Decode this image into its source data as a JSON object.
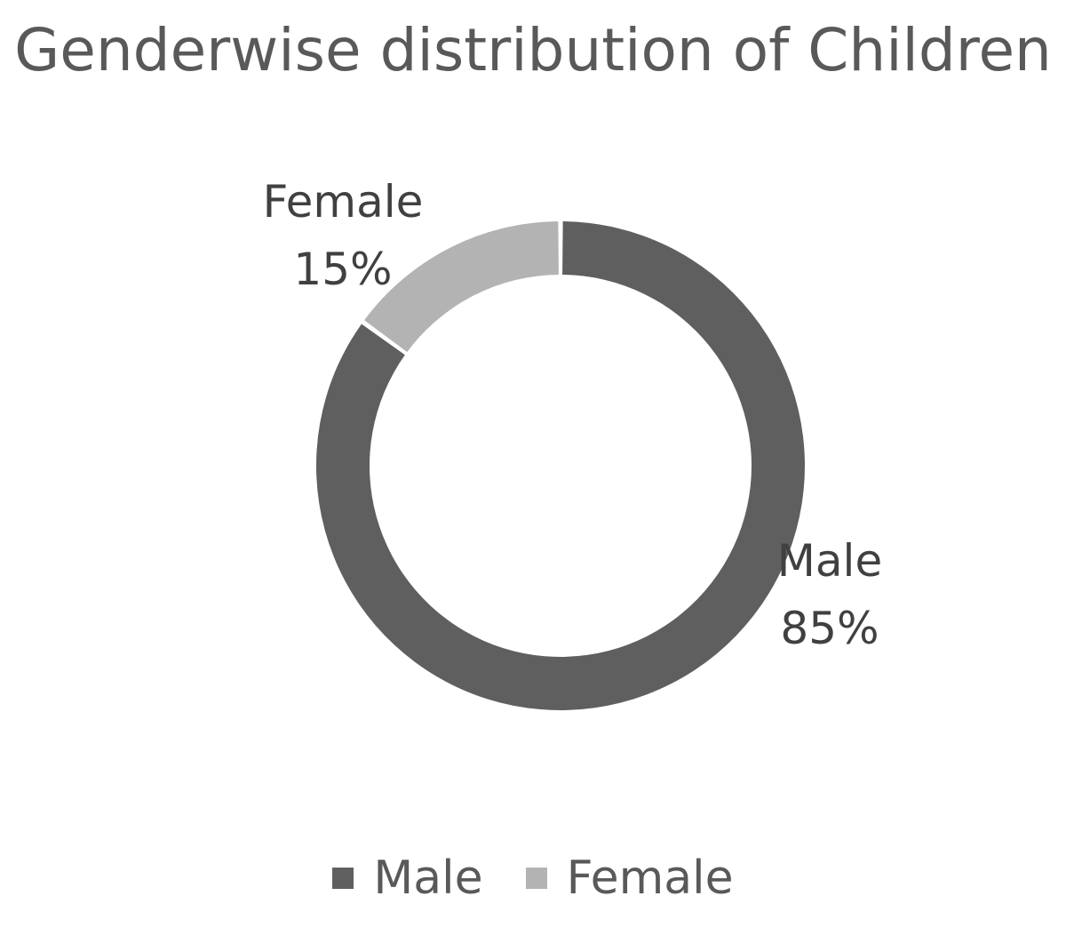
{
  "chart_data": {
    "type": "pie",
    "variant": "donut",
    "title": "Genderwise distribution of Children",
    "categories": [
      "Male",
      "Female"
    ],
    "values": [
      85,
      15
    ],
    "value_labels": [
      "85%",
      "15%"
    ],
    "colors": [
      "#5f5f5f",
      "#b3b3b3"
    ],
    "legend_position": "bottom",
    "start_angle_deg": 0,
    "direction": "clockwise"
  }
}
